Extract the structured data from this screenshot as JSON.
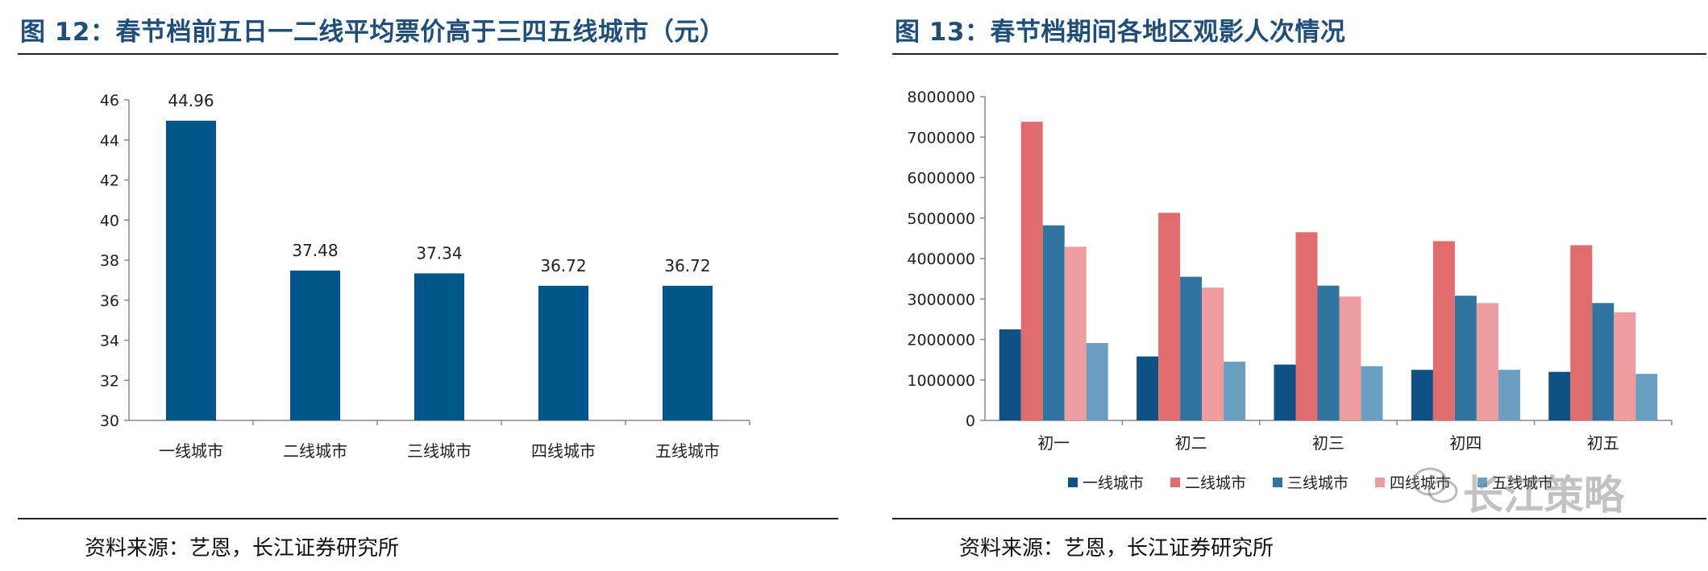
{
  "left": {
    "title": "图 12：春节档前五日一二线平均票价高于三四五线城市（元）",
    "source": "资料来源：艺恩，长江证券研究所"
  },
  "right": {
    "title": "图 13：春节档期间各地区观影人次情况",
    "source": "资料来源：艺恩，长江证券研究所"
  },
  "watermark": "长江策略",
  "colors": {
    "title": "#1f4e79",
    "bar_left": "#00558a",
    "series": [
      "#0d5283",
      "#e06c6e",
      "#2f75a0",
      "#ee9c9d",
      "#6a9fc2"
    ]
  },
  "chart_data": [
    {
      "type": "bar",
      "title": "图 12：春节档前五日一二线平均票价高于三四五线城市（元）",
      "categories": [
        "一线城市",
        "二线城市",
        "三线城市",
        "四线城市",
        "五线城市"
      ],
      "values": [
        44.96,
        37.48,
        37.34,
        36.72,
        36.72
      ],
      "data_labels": [
        "44.96",
        "37.48",
        "37.34",
        "36.72",
        "36.72"
      ],
      "ylim": [
        30,
        46
      ],
      "yticks": [
        "30",
        "32",
        "34",
        "36",
        "38",
        "40",
        "42",
        "44",
        "46"
      ],
      "xlabel": "",
      "ylabel": "",
      "legend": "none",
      "grid": false
    },
    {
      "type": "bar",
      "title": "图 13：春节档期间各地区观影人次情况",
      "categories": [
        "初一",
        "初二",
        "初三",
        "初四",
        "初五"
      ],
      "series": [
        {
          "name": "一线城市",
          "values": [
            2250000,
            1580000,
            1380000,
            1250000,
            1200000
          ]
        },
        {
          "name": "二线城市",
          "values": [
            7380000,
            5130000,
            4650000,
            4430000,
            4330000
          ]
        },
        {
          "name": "三线城市",
          "values": [
            4820000,
            3550000,
            3330000,
            3080000,
            2900000
          ]
        },
        {
          "name": "四线城市",
          "values": [
            4290000,
            3280000,
            3060000,
            2900000,
            2670000
          ]
        },
        {
          "name": "五线城市",
          "values": [
            1910000,
            1450000,
            1340000,
            1250000,
            1150000
          ]
        }
      ],
      "ylim": [
        0,
        8000000
      ],
      "yticks": [
        "0",
        "1000000",
        "2000000",
        "3000000",
        "4000000",
        "5000000",
        "6000000",
        "7000000",
        "8000000"
      ],
      "xlabel": "",
      "ylabel": "",
      "legend": "bottom",
      "grid": false
    }
  ]
}
